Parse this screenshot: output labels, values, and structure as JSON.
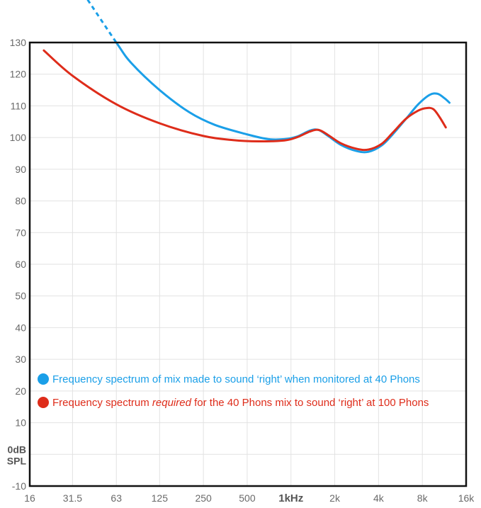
{
  "chart_data": {
    "type": "line",
    "x_scale": "log",
    "x_tick_labels": [
      "16",
      "31.5",
      "63",
      "125",
      "250",
      "500",
      "1kHz",
      "2k",
      "4k",
      "8k",
      "16k"
    ],
    "x_tick_values": [
      16,
      31.5,
      63,
      125,
      250,
      500,
      1000,
      2000,
      4000,
      8000,
      16000
    ],
    "x_bold_tick": "1kHz",
    "y_tick_labels": [
      "130",
      "120",
      "110",
      "100",
      "90",
      "80",
      "70",
      "60",
      "50",
      "40",
      "30",
      "20",
      "10",
      "",
      "-10"
    ],
    "y_tick_values": [
      130,
      120,
      110,
      100,
      90,
      80,
      70,
      60,
      50,
      40,
      30,
      20,
      10,
      0,
      -10
    ],
    "y_zero_label_line1": "0dB",
    "y_zero_label_line2": "SPL",
    "xlim": [
      16,
      16000
    ],
    "ylim": [
      -10,
      130
    ],
    "grid": true,
    "legend_position": "bottom-left",
    "series": [
      {
        "name": "Frequency spectrum of mix made to sound ‘right’ when monitored at 40 Phons",
        "color": "#1a9fe8",
        "points": [
          [
            40,
            143.5
          ],
          [
            63,
            130
          ],
          [
            80,
            123.5
          ],
          [
            125,
            115
          ],
          [
            200,
            108
          ],
          [
            300,
            104
          ],
          [
            500,
            101
          ],
          [
            700,
            99.5
          ],
          [
            900,
            99.5
          ],
          [
            1100,
            100.3
          ],
          [
            1350,
            102.2
          ],
          [
            1550,
            102.4
          ],
          [
            1800,
            100.5
          ],
          [
            2200,
            97.7
          ],
          [
            2800,
            95.8
          ],
          [
            3400,
            95.5
          ],
          [
            4200,
            97.5
          ],
          [
            5000,
            101
          ],
          [
            6200,
            106
          ],
          [
            7500,
            110.5
          ],
          [
            9000,
            113.5
          ],
          [
            10200,
            113.8
          ],
          [
            11300,
            112.5
          ],
          [
            12300,
            111
          ]
        ],
        "dashed_above": 130
      },
      {
        "name": "Frequency spectrum required for the 40 Phons mix to sound ‘right’ at 100 Phons",
        "color": "#de2c1a",
        "points": [
          [
            20,
            127.5
          ],
          [
            31.5,
            119.5
          ],
          [
            63,
            110.5
          ],
          [
            125,
            104.5
          ],
          [
            250,
            100.5
          ],
          [
            400,
            99.2
          ],
          [
            600,
            98.8
          ],
          [
            900,
            99.1
          ],
          [
            1100,
            100.1
          ],
          [
            1350,
            101.9
          ],
          [
            1550,
            102.4
          ],
          [
            1800,
            100.8
          ],
          [
            2200,
            98.2
          ],
          [
            2800,
            96.5
          ],
          [
            3400,
            96.2
          ],
          [
            4200,
            98
          ],
          [
            5000,
            101.5
          ],
          [
            6200,
            106
          ],
          [
            7500,
            108.5
          ],
          [
            8500,
            109.3
          ],
          [
            9500,
            109
          ],
          [
            10500,
            106.5
          ],
          [
            11600,
            103.2
          ]
        ]
      }
    ],
    "legend": [
      {
        "prefix": "Frequency spectrum of mix made to sound ‘right’ when monitored at 40 Phons",
        "emph": "",
        "suffix": "",
        "color": "#1a9fe8"
      },
      {
        "prefix": "Frequency spectrum ",
        "emph": "required",
        "suffix": " for the 40 Phons mix to sound ‘right’ at 100 Phons",
        "color": "#de2c1a"
      }
    ]
  }
}
